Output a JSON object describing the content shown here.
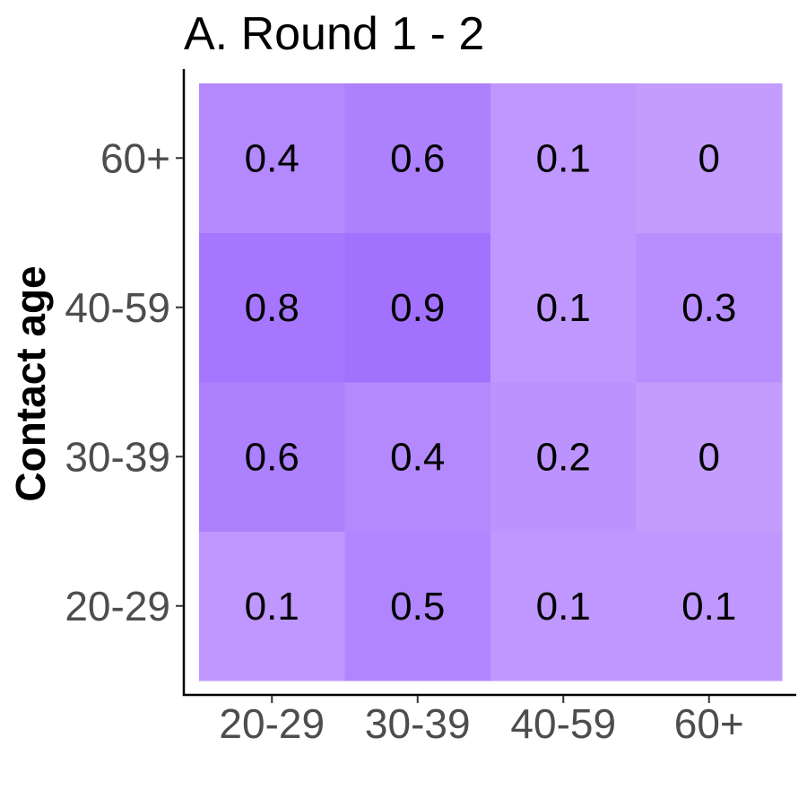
{
  "chart_data": {
    "type": "heatmap",
    "title": "A. Round 1 - 2",
    "xlabel": "",
    "ylabel": "Contact age",
    "x_categories": [
      "20-29",
      "30-39",
      "40-59",
      "60+"
    ],
    "y_categories": [
      "20-29",
      "30-39",
      "40-59",
      "60+"
    ],
    "values": [
      [
        0.1,
        0.5,
        0.1,
        0.1
      ],
      [
        0.6,
        0.4,
        0.2,
        0
      ],
      [
        0.8,
        0.9,
        0.1,
        0.3
      ],
      [
        0.4,
        0.6,
        0.1,
        0
      ]
    ],
    "labels": [
      [
        "0.1",
        "0.5",
        "0.1",
        "0.1"
      ],
      [
        "0.6",
        "0.4",
        "0.2",
        "0"
      ],
      [
        "0.8",
        "0.9",
        "0.1",
        "0.3"
      ],
      [
        "0.4",
        "0.6",
        "0.1",
        "0"
      ]
    ],
    "color_low": "#c39cfe",
    "color_high": "#a272fe",
    "grid": false,
    "legend": "none"
  }
}
